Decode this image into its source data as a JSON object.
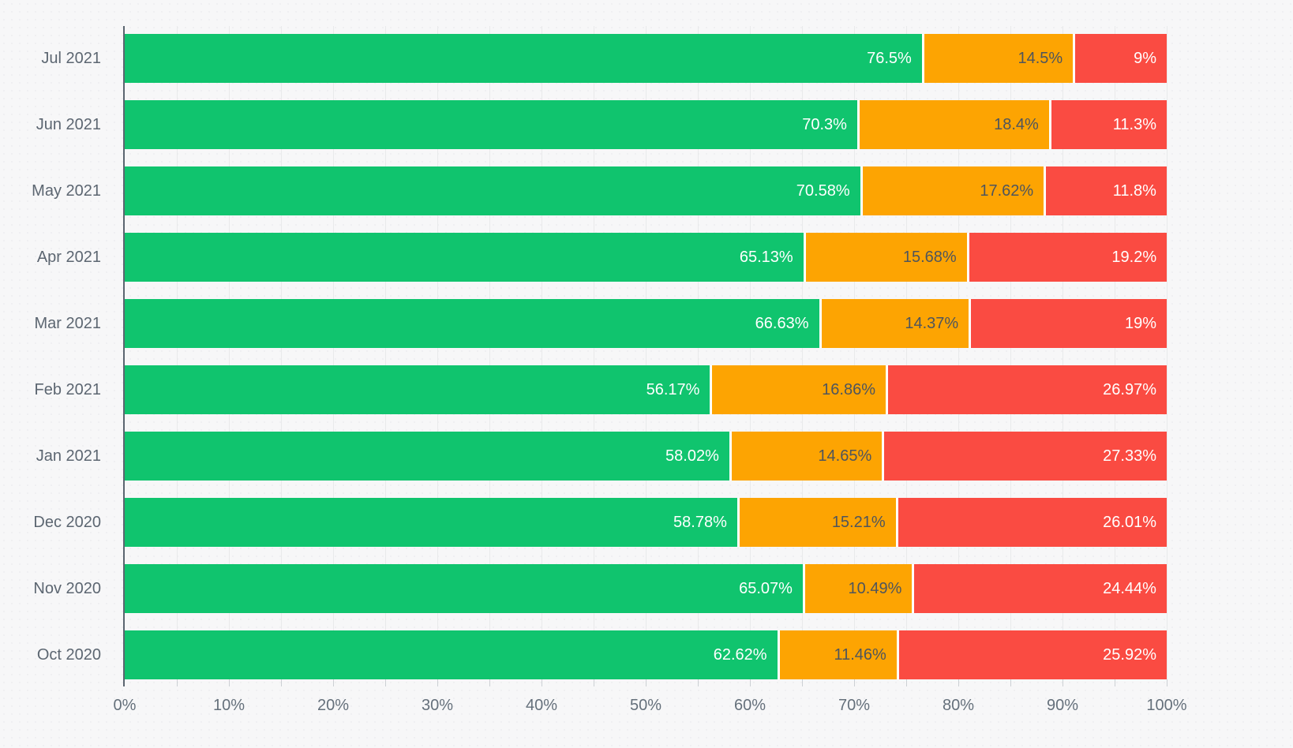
{
  "chart_data": {
    "type": "bar",
    "orientation": "horizontal",
    "stacked": true,
    "unit": "%",
    "categories": [
      "Jul 2021",
      "Jun 2021",
      "May 2021",
      "Apr 2021",
      "Mar 2021",
      "Feb 2021",
      "Jan 2021",
      "Dec 2020",
      "Nov 2020",
      "Oct 2020"
    ],
    "series": [
      {
        "name": "green",
        "color": "#10c46e",
        "label_color": "#ffffff",
        "values": [
          76.5,
          70.3,
          70.58,
          65.13,
          66.63,
          56.17,
          58.02,
          58.78,
          65.07,
          62.62
        ],
        "labels": [
          "76.5%",
          "70.3%",
          "70.58%",
          "65.13%",
          "66.63%",
          "56.17%",
          "58.02%",
          "58.78%",
          "65.07%",
          "62.62%"
        ]
      },
      {
        "name": "orange",
        "color": "#fda402",
        "label_color": "#4e555d",
        "values": [
          14.5,
          18.4,
          17.62,
          15.68,
          14.37,
          16.86,
          14.65,
          15.21,
          10.49,
          11.46
        ],
        "labels": [
          "14.5%",
          "18.4%",
          "17.62%",
          "15.68%",
          "14.37%",
          "16.86%",
          "14.65%",
          "15.21%",
          "10.49%",
          "11.46%"
        ]
      },
      {
        "name": "red",
        "color": "#fa4b42",
        "label_color": "#ffffff",
        "values": [
          9,
          11.3,
          11.8,
          19.2,
          19,
          26.97,
          27.33,
          26.01,
          24.44,
          25.92
        ],
        "labels": [
          "9%",
          "11.3%",
          "11.8%",
          "19.2%",
          "19%",
          "26.97%",
          "27.33%",
          "26.01%",
          "24.44%",
          "25.92%"
        ]
      }
    ],
    "x_tick_labels": [
      "0%",
      "10%",
      "20%",
      "30%",
      "40%",
      "50%",
      "60%",
      "70%",
      "80%",
      "90%",
      "100%"
    ],
    "xlim": [
      0,
      100
    ],
    "grid": {
      "vertical_minor_step_percent": 5,
      "horizontal": false
    },
    "legend": "none"
  },
  "colors": {
    "background": "#f7f7f8",
    "grid_line": "#e9eaeb",
    "axis_line": "#5b6570",
    "tick_mark": "#ccd0d4",
    "category_label": "#5c6671",
    "tick_label": "#65707b",
    "segment_separator": "#ffffff"
  }
}
